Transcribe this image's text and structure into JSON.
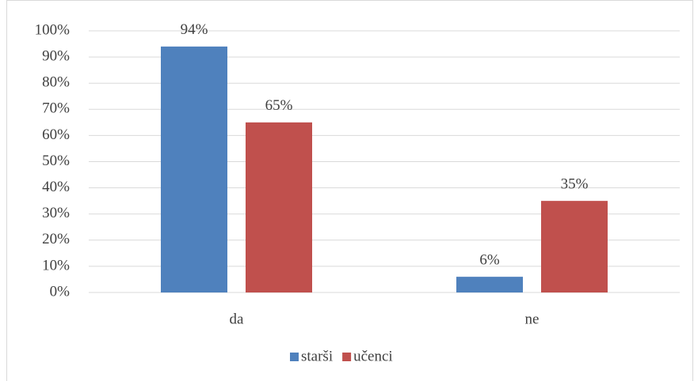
{
  "chart_data": {
    "type": "bar",
    "categories": [
      "da",
      "ne"
    ],
    "series": [
      {
        "name": "starši",
        "color": "#4f81bd",
        "values": [
          94,
          6
        ],
        "value_labels": [
          "94%",
          "6%"
        ]
      },
      {
        "name": "učenci",
        "color": "#c0504d",
        "values": [
          65,
          35
        ],
        "value_labels": [
          "65%",
          "35%"
        ]
      }
    ],
    "ylim": [
      0,
      100
    ],
    "yticks": [
      {
        "value": 0,
        "label": "0%"
      },
      {
        "value": 10,
        "label": "10%"
      },
      {
        "value": 20,
        "label": "20%"
      },
      {
        "value": 30,
        "label": "30%"
      },
      {
        "value": 40,
        "label": "40%"
      },
      {
        "value": 50,
        "label": "50%"
      },
      {
        "value": 60,
        "label": "60%"
      },
      {
        "value": 70,
        "label": "70%"
      },
      {
        "value": 80,
        "label": "80%"
      },
      {
        "value": 90,
        "label": "90%"
      },
      {
        "value": 100,
        "label": "100%"
      }
    ],
    "grid": true,
    "legend": "bottom"
  }
}
